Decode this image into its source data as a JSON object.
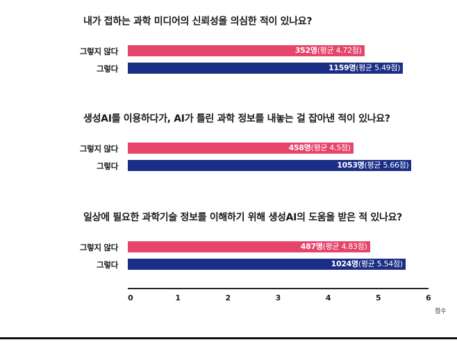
{
  "chart_data": {
    "type": "bar",
    "orientation": "horizontal",
    "xlim": [
      0,
      6
    ],
    "x_ticks": [
      "0",
      "1",
      "2",
      "3",
      "4",
      "5",
      "6"
    ],
    "x_unit": "점수",
    "grid": false,
    "colors": {
      "그렇지 않다": "#e5446b",
      "그렇다": "#1b2e86"
    },
    "groups": [
      {
        "question": "내가 접하는 과학 미디어의 신뢰성을 의심한 적이 있나요?",
        "bars": [
          {
            "label": "그렇지 않다",
            "value": 4.72,
            "count": "352명",
            "avg_text": "(평균 4.72점)"
          },
          {
            "label": "그렇다",
            "value": 5.49,
            "count": "1159명",
            "avg_text": "(평균 5.49점)"
          }
        ]
      },
      {
        "question": "생성AI를 이용하다가, AI가 틀린 과학 정보를 내놓는 걸 잡아낸 적이 있나요?",
        "bars": [
          {
            "label": "그렇지 않다",
            "value": 4.5,
            "count": "458명",
            "avg_text": "(평균 4.5점)"
          },
          {
            "label": "그렇다",
            "value": 5.66,
            "count": "1053명",
            "avg_text": "(평균 5.66점)"
          }
        ]
      },
      {
        "question": "일상에 필요한 과학기술 정보를 이해하기 위해 생성AI의 도움을 받은 적 있나요?",
        "bars": [
          {
            "label": "그렇지 않다",
            "value": 4.83,
            "count": "487명",
            "avg_text": "(평균 4.83점)"
          },
          {
            "label": "그렇다",
            "value": 5.54,
            "count": "1024명",
            "avg_text": "(평균 5.54점)"
          }
        ]
      }
    ]
  }
}
